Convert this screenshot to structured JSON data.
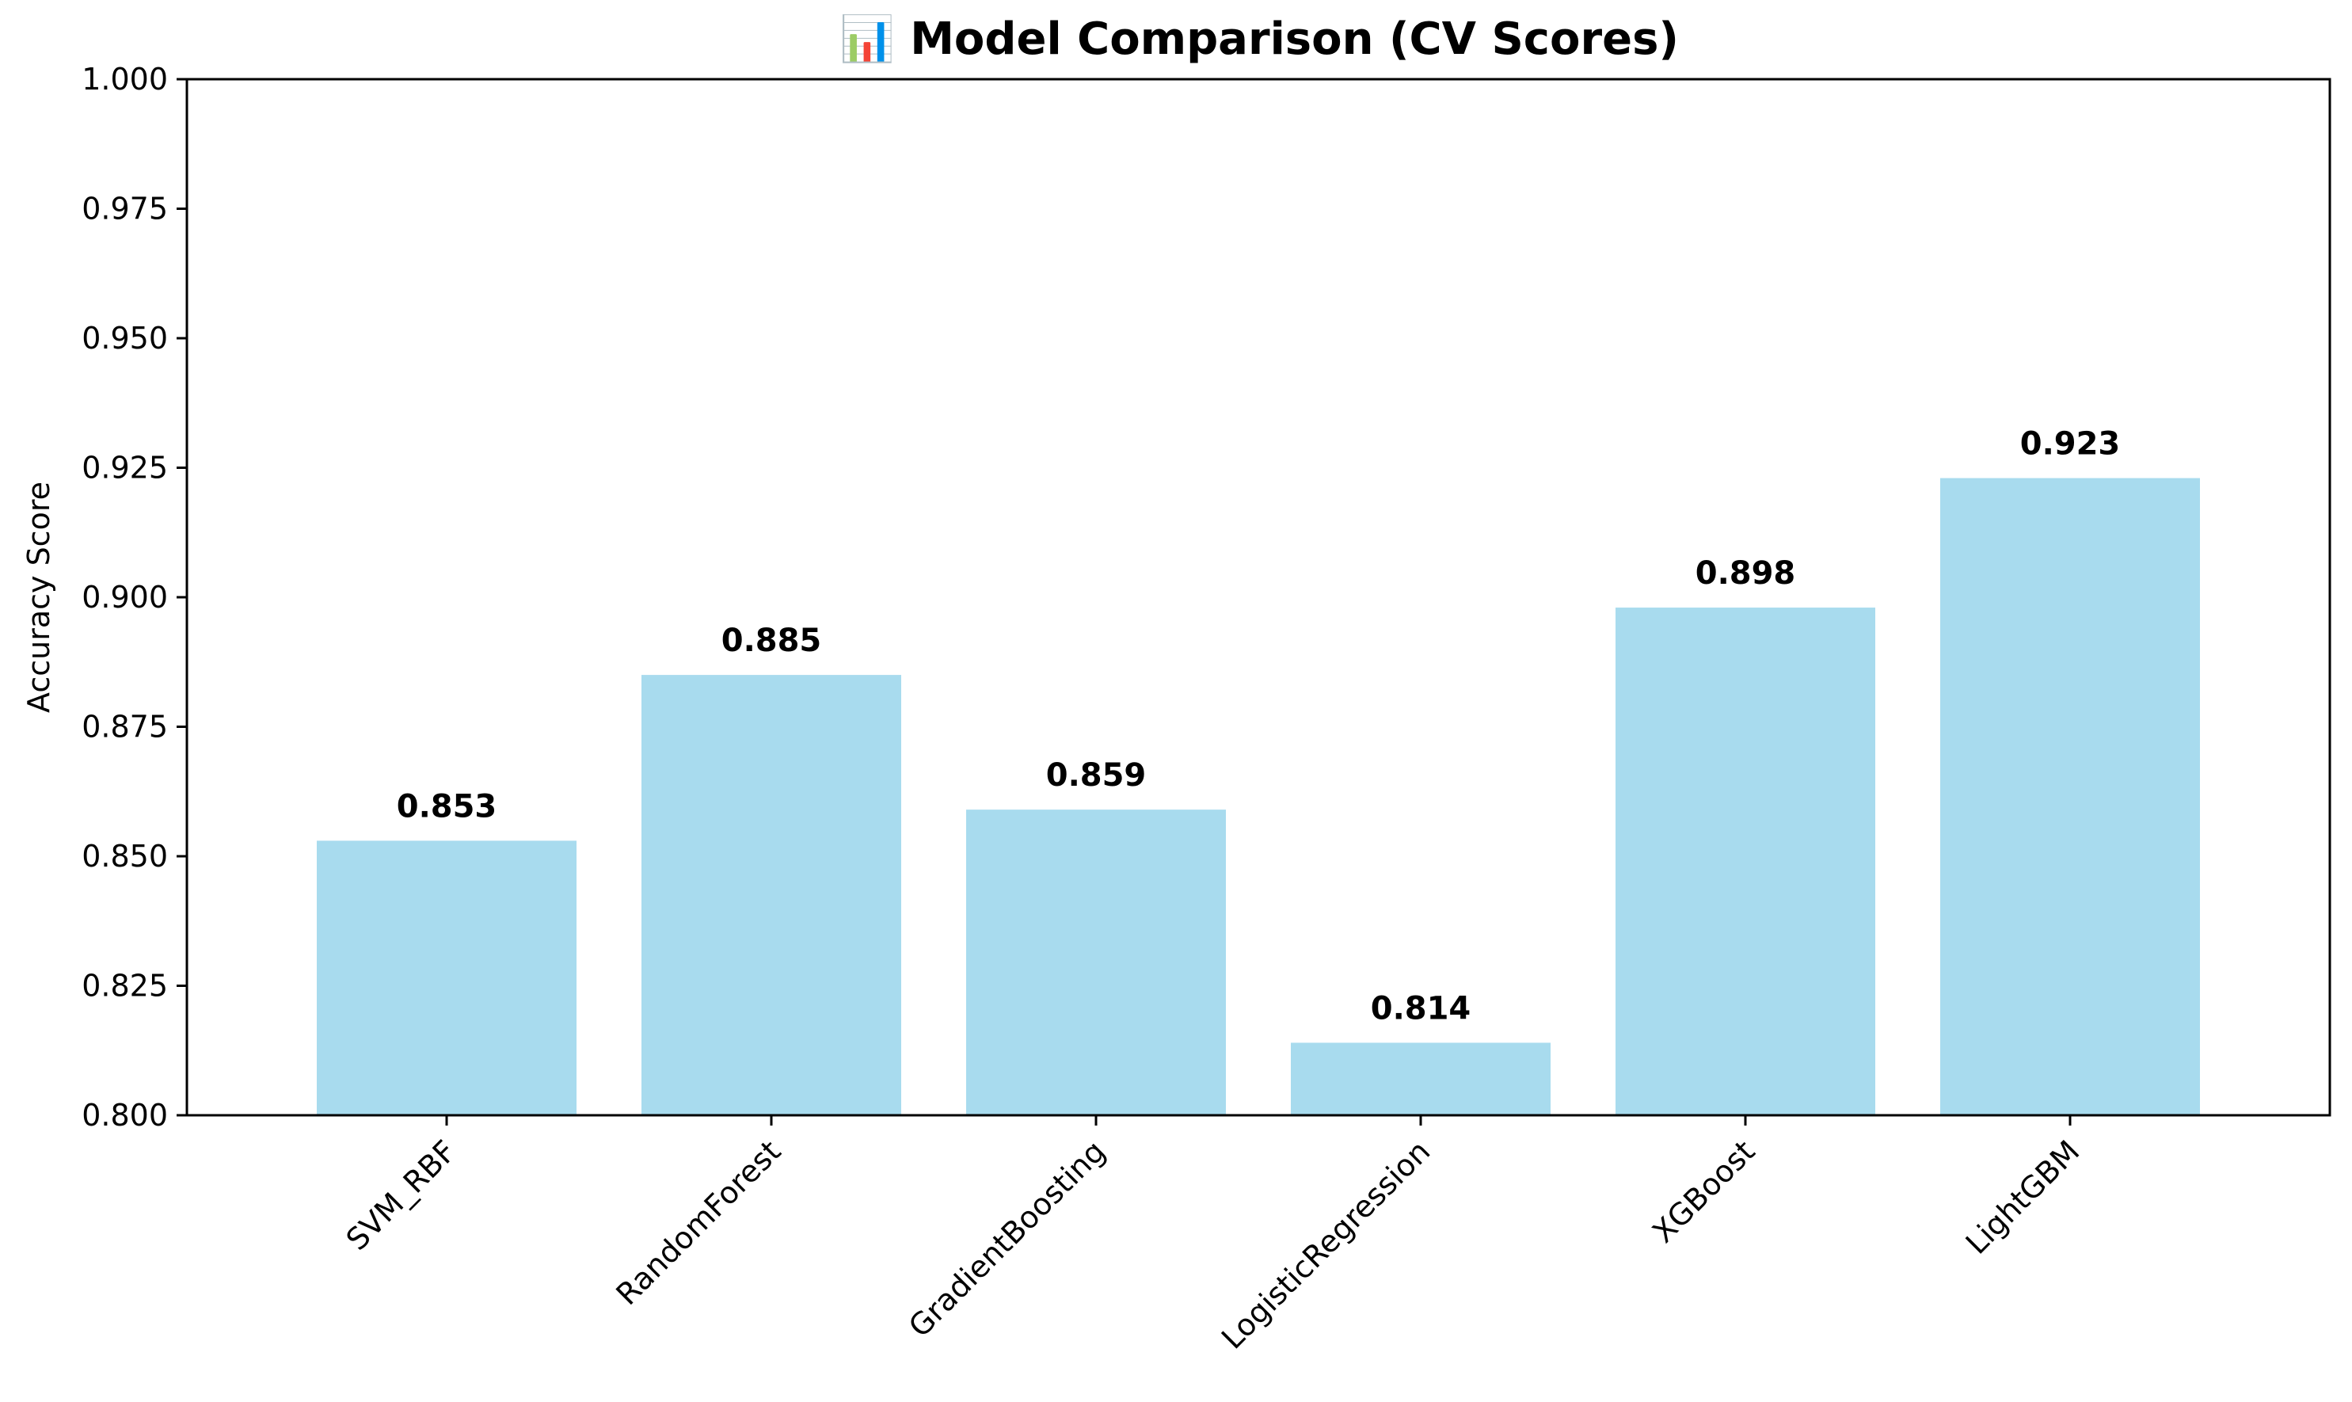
{
  "chart_data": {
    "type": "bar",
    "title": "📊 Model Comparison (CV Scores)",
    "xlabel": "",
    "ylabel": "Accuracy Score",
    "categories": [
      "SVM_RBF",
      "RandomForest",
      "GradientBoosting",
      "LogisticRegression",
      "XGBoost",
      "LightGBM"
    ],
    "values": [
      0.853,
      0.885,
      0.859,
      0.814,
      0.898,
      0.923
    ],
    "value_labels": [
      "0.853",
      "0.885",
      "0.859",
      "0.814",
      "0.898",
      "0.923"
    ],
    "ylim": [
      0.8,
      1.0
    ],
    "yticks": [
      0.8,
      0.825,
      0.85,
      0.875,
      0.9,
      0.925,
      0.95,
      0.975,
      1.0
    ],
    "ytick_labels": [
      "0.800",
      "0.825",
      "0.850",
      "0.875",
      "0.900",
      "0.925",
      "0.950",
      "0.975",
      "1.000"
    ],
    "grid": false,
    "bar_color": "#a8dbee",
    "axis_color": "#000000"
  }
}
